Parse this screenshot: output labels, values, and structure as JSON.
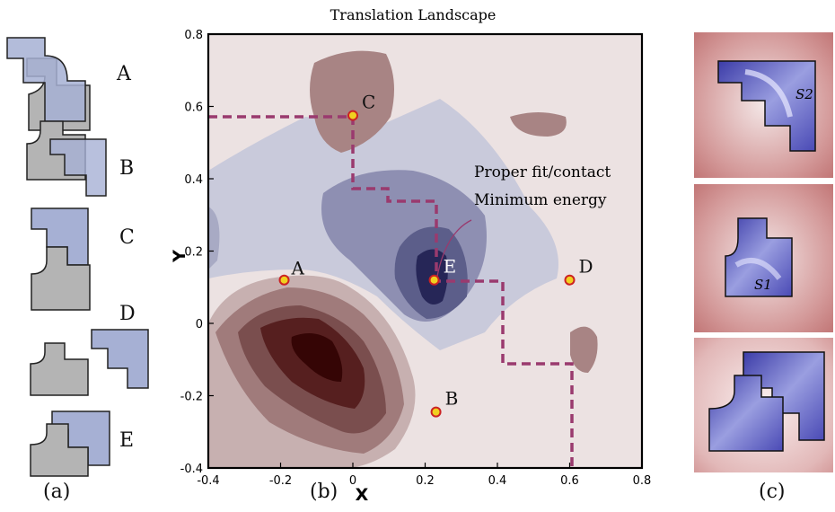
{
  "panel_a": {
    "caption": "(a)",
    "configs": [
      "A",
      "B",
      "C",
      "D",
      "E"
    ]
  },
  "panel_b": {
    "caption": "(b)",
    "chart_data": {
      "type": "contour",
      "title": "Translation Landscape",
      "xlabel": "X",
      "ylabel": "Y",
      "xlim": [
        -0.4,
        0.8
      ],
      "ylim": [
        -0.4,
        0.8
      ],
      "xticks": [
        "-0.4",
        "-0.2",
        "0",
        "0.2",
        "0.4",
        "0.6",
        "0.8"
      ],
      "yticks": [
        "-0.4",
        "-0.2",
        "0",
        "0.2",
        "0.4",
        "0.6",
        "0.8"
      ],
      "points": [
        {
          "label": "A",
          "x": -0.19,
          "y": 0.12
        },
        {
          "label": "B",
          "x": 0.23,
          "y": -0.245
        },
        {
          "label": "C",
          "x": 0.0,
          "y": 0.575
        },
        {
          "label": "D",
          "x": 0.6,
          "y": 0.12
        },
        {
          "label": "E",
          "x": 0.225,
          "y": 0.12
        }
      ],
      "annotations": [
        "Proper fit/contact",
        "Minimum energy"
      ],
      "colors": {
        "low_energy": "#1e1e50",
        "mid_low": "#7878a0",
        "background": "#ece2e2",
        "high_energy": "#3a0505",
        "mid_high": "#a07878",
        "path": "#9a3a6e",
        "marker_fill": "#f0d020",
        "marker_edge": "#cc2222"
      }
    }
  },
  "panel_c": {
    "caption": "(c)",
    "labels": [
      "S2",
      "S1"
    ]
  }
}
